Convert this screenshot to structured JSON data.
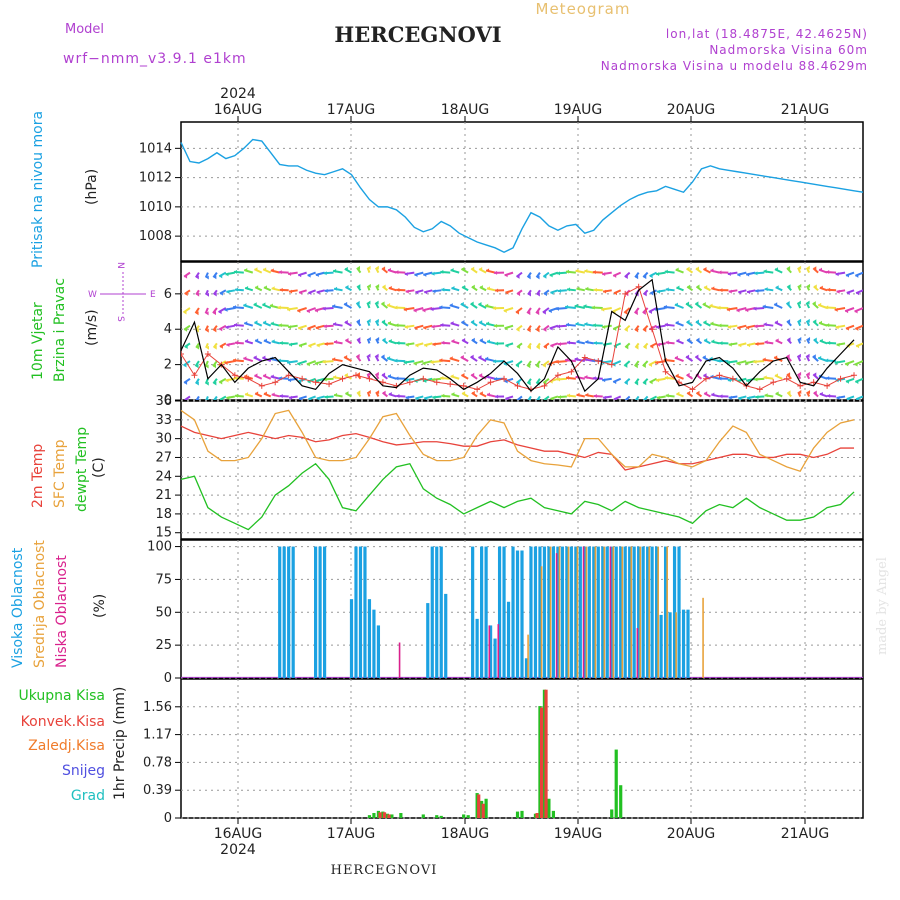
{
  "header": {
    "model_label": "Model",
    "model_name": "wrf−nmm_v3.9.1  e1km",
    "title": "HERCEGNOVI",
    "meteogram": "Meteogram",
    "lonlat": "lon,lat (18.4875E, 42.4625N)",
    "altitude": "Nadmorska Visina 60m",
    "model_altitude": "Nadmorska Visina u modelu 88.4629m"
  },
  "footer_title": "HERCEGNOVI",
  "watermark": "made by Angel",
  "year": "2024",
  "dates": [
    "16AUG",
    "17AUG",
    "18AUG",
    "19AUG",
    "20AUG",
    "21AUG"
  ],
  "colors": {
    "pressure": "#1ba1e2",
    "temp2m": "#e8433b",
    "sfc": "#e8a23b",
    "dewpt": "#22c022",
    "high_cloud": "#1ba1e2",
    "mid_cloud": "#e8a23b",
    "low_cloud": "#d9208c",
    "precip_total": "#22c022",
    "precip_conv": "#e8433b",
    "precip_grid": "#f07b2a",
    "snow": "#5050e0",
    "graupel": "#20c0c0",
    "purple": "#b040d0"
  },
  "panels": {
    "pressure": {
      "label": "Pritisak na nivou mora",
      "unit": "(hPa)"
    },
    "wind": {
      "label1": "10m Vjetar",
      "label2": "Brzina i Pravac",
      "unit": "(m/s)",
      "compass_n": "N",
      "compass_w": "W",
      "compass_e": "E",
      "compass_s": "S"
    },
    "temp": {
      "label_2m": "2m Temp",
      "label_sfc": "SFC Temp",
      "label_dew": "dewpt Temp",
      "unit": "(C)"
    },
    "cloud": {
      "label_high": "Visoka Oblacnost",
      "label_mid": "Srednja Oblacnost",
      "label_low": "Niska Oblacnost",
      "unit": "(%)"
    },
    "precip": {
      "unit": "1hr Precip (mm)",
      "legend": [
        "Ukupna Kisa",
        "Konvek.Kisa",
        "Zaledj.Kisa",
        "Snijeg",
        "Grad"
      ]
    }
  },
  "chart_data": [
    {
      "type": "line",
      "title": "Pritisak na nivou mora",
      "ylabel": "(hPa)",
      "ylim": [
        1006.3,
        1015.8
      ],
      "yticks": [
        "1008",
        "1010",
        "1012",
        "1014"
      ],
      "x_hours": [
        0,
        2,
        4,
        6,
        8,
        10,
        12,
        14,
        16,
        18,
        20,
        22,
        24,
        26,
        28,
        30,
        32,
        34,
        36,
        38,
        40,
        42,
        44,
        46,
        48,
        50,
        52,
        54,
        56,
        58,
        60,
        62,
        64,
        66,
        68,
        70,
        72,
        74,
        76,
        78,
        80,
        82,
        84,
        86,
        88,
        90,
        92,
        94,
        96,
        98,
        100,
        102,
        104,
        106,
        108,
        110,
        112,
        114,
        116,
        118,
        120,
        122,
        124,
        126,
        128,
        130,
        132,
        134,
        136,
        138,
        140,
        142,
        144,
        146,
        148,
        150,
        152
      ],
      "series": [
        {
          "values": [
            1014.4,
            1013.1,
            1013.0,
            1013.3,
            1013.7,
            1013.3,
            1013.5,
            1014.0,
            1014.6,
            1014.5,
            1013.7,
            1012.9,
            1012.8,
            1012.8,
            1012.5,
            1012.3,
            1012.2,
            1012.4,
            1012.6,
            1012.2,
            1011.3,
            1010.5,
            1010.0,
            1010.0,
            1009.8,
            1009.3,
            1008.6,
            1008.3,
            1008.5,
            1009.0,
            1008.7,
            1008.2,
            1007.9,
            1007.6,
            1007.4,
            1007.2,
            1006.9,
            1007.2,
            1008.5,
            1009.6,
            1009.3,
            1008.7,
            1008.4,
            1008.7,
            1008.8,
            1008.2,
            1008.4,
            1009.1,
            1009.6,
            1010.1,
            1010.5,
            1010.8,
            1011.0,
            1011.1,
            1011.4,
            1011.2,
            1011.0,
            1011.7,
            1012.6,
            1012.8,
            1012.6,
            1012.5,
            1012.4,
            1012.3,
            1012.2,
            1012.1,
            1012.0,
            1011.9,
            1011.8,
            1011.7,
            1011.6,
            1011.5,
            1011.4,
            1011.3,
            1011.2,
            1011.1,
            1011.0
          ]
        }
      ]
    },
    {
      "type": "line",
      "title": "10m Vjetar Brzina i Pravac",
      "ylabel": "(m/s)",
      "ylim": [
        0,
        7.8
      ],
      "yticks": [
        "0",
        "2",
        "4",
        "6"
      ],
      "x_hours": [
        0,
        3,
        6,
        9,
        12,
        15,
        18,
        21,
        24,
        27,
        30,
        33,
        36,
        39,
        42,
        45,
        48,
        51,
        54,
        57,
        60,
        63,
        66,
        69,
        72,
        75,
        78,
        81,
        84,
        87,
        90,
        93,
        96,
        99,
        102,
        105,
        108,
        111,
        114,
        117,
        120,
        123,
        126,
        129,
        132,
        135,
        138,
        141,
        144,
        147,
        150
      ],
      "series": [
        {
          "values": [
            2.8,
            4.4,
            1.2,
            2.0,
            1.0,
            1.8,
            2.2,
            2.4,
            1.6,
            0.8,
            0.6,
            1.5,
            2.0,
            1.8,
            1.6,
            0.8,
            0.7,
            1.4,
            1.8,
            1.7,
            1.2,
            0.6,
            1.0,
            1.5,
            2.2,
            1.5,
            0.5,
            1.2,
            3.0,
            2.2,
            0.5,
            1.2,
            5.0,
            4.5,
            6.2,
            6.8,
            2.2,
            0.8,
            1.0,
            2.2,
            2.4,
            1.8,
            0.8,
            1.6,
            2.2,
            2.4,
            1.0,
            0.8,
            1.8,
            2.6,
            3.4
          ]
        },
        {
          "values": [
            2.6,
            1.4,
            2.6,
            2.0,
            1.4,
            1.2,
            0.8,
            1.0,
            1.4,
            1.2,
            1.0,
            0.9,
            1.2,
            1.4,
            1.2,
            1.0,
            0.8,
            1.0,
            1.2,
            1.0,
            0.9,
            0.8,
            0.6,
            1.0,
            1.2,
            0.8,
            0.6,
            0.8,
            1.4,
            1.6,
            2.4,
            2.2,
            2.0,
            6.0,
            6.4,
            4.0,
            1.6,
            1.0,
            0.6,
            1.2,
            1.4,
            1.2,
            0.8,
            0.6,
            1.0,
            1.2,
            0.8,
            1.0,
            0.8,
            1.2,
            1.4
          ]
        }
      ]
    },
    {
      "type": "line",
      "title": "2m Temp / SFC Temp / dewpt Temp",
      "ylabel": "(C)",
      "ylim": [
        14,
        36
      ],
      "yticks": [
        "15",
        "18",
        "21",
        "24",
        "27",
        "30",
        "33",
        "36"
      ],
      "x_hours": [
        0,
        3,
        6,
        9,
        12,
        15,
        18,
        21,
        24,
        27,
        30,
        33,
        36,
        39,
        42,
        45,
        48,
        51,
        54,
        57,
        60,
        63,
        66,
        69,
        72,
        75,
        78,
        81,
        84,
        87,
        90,
        93,
        96,
        99,
        102,
        105,
        108,
        111,
        114,
        117,
        120,
        123,
        126,
        129,
        132,
        135,
        138,
        141,
        144,
        147,
        150
      ],
      "series": [
        {
          "name": "2m Temp",
          "values": [
            32.0,
            31.0,
            30.5,
            30.0,
            30.5,
            31.0,
            30.5,
            30.0,
            30.5,
            30.2,
            29.5,
            29.8,
            30.5,
            30.8,
            30.2,
            29.5,
            29.0,
            29.2,
            29.5,
            29.5,
            29.2,
            28.8,
            28.8,
            29.5,
            29.8,
            29.0,
            28.5,
            28.0,
            28.0,
            27.5,
            27.0,
            27.8,
            27.5,
            25.0,
            25.5,
            26.0,
            26.5,
            26.0,
            26.0,
            26.5,
            27.0,
            27.5,
            27.5,
            27.0,
            27.0,
            27.5,
            27.5,
            27.0,
            27.5,
            28.5,
            28.5
          ]
        },
        {
          "name": "SFC Temp",
          "values": [
            34.5,
            33.0,
            28.0,
            26.5,
            26.5,
            27.0,
            30.0,
            34.0,
            34.5,
            31.0,
            27.0,
            26.5,
            26.5,
            27.0,
            30.0,
            33.5,
            34.0,
            30.5,
            27.5,
            26.5,
            26.5,
            27.0,
            30.5,
            33.0,
            32.5,
            28.0,
            26.5,
            26.0,
            25.8,
            25.5,
            30.0,
            30.0,
            27.5,
            25.5,
            25.5,
            27.5,
            27.0,
            26.0,
            25.5,
            26.5,
            29.5,
            32.0,
            31.0,
            27.5,
            26.5,
            25.5,
            24.8,
            28.5,
            31.0,
            32.5,
            33.0
          ]
        },
        {
          "name": "dewpt Temp",
          "values": [
            23.5,
            24.0,
            19.0,
            17.5,
            16.5,
            15.5,
            17.5,
            21.0,
            22.5,
            24.5,
            26.0,
            23.5,
            19.0,
            18.5,
            21.0,
            23.5,
            25.5,
            26.0,
            22.0,
            20.5,
            19.5,
            18.0,
            19.0,
            20.0,
            19.0,
            20.0,
            20.5,
            19.0,
            18.5,
            18.0,
            20.0,
            19.5,
            18.5,
            20.0,
            19.0,
            18.5,
            18.0,
            17.5,
            16.5,
            18.5,
            19.5,
            19.0,
            20.5,
            19.0,
            18.0,
            17.0,
            17.0,
            17.5,
            19.0,
            19.5,
            21.5
          ]
        }
      ]
    },
    {
      "type": "bar",
      "title": "Visoka / Srednja / Niska Oblacnost",
      "ylabel": "(%)",
      "ylim": [
        0,
        105
      ],
      "yticks": [
        "0",
        "25",
        "50",
        "75",
        "100"
      ],
      "series": [
        {
          "name": "Visoka Oblacnost",
          "x_hours": [
            22,
            23,
            24,
            25,
            30,
            31,
            32,
            38,
            39,
            40,
            41,
            42,
            43,
            44,
            55,
            56,
            57,
            58,
            59,
            65,
            66,
            67,
            68,
            69,
            70,
            71,
            72,
            73,
            74,
            75,
            76,
            77,
            78,
            79,
            80,
            81,
            82,
            83,
            84,
            85,
            86,
            87,
            88,
            89,
            90,
            91,
            92,
            93,
            94,
            95,
            96,
            97,
            98,
            99,
            100,
            101,
            102,
            103,
            104,
            105,
            106,
            107,
            108,
            109,
            110,
            111,
            112,
            113
          ],
          "values": [
            100,
            100,
            100,
            100,
            100,
            100,
            100,
            60,
            100,
            100,
            100,
            60,
            52,
            40,
            57,
            100,
            100,
            100,
            64,
            100,
            45,
            100,
            100,
            40,
            30,
            100,
            100,
            58,
            100,
            97,
            97,
            15,
            100,
            100,
            100,
            100,
            100,
            100,
            100,
            100,
            100,
            100,
            100,
            100,
            100,
            100,
            100,
            100,
            100,
            100,
            100,
            100,
            100,
            100,
            100,
            100,
            100,
            100,
            100,
            100,
            100,
            48,
            100,
            50,
            100,
            100,
            52,
            52
          ]
        },
        {
          "name": "Srednja Oblacnost",
          "x_hours": [
            77,
            80,
            82,
            84,
            86,
            88,
            90,
            92,
            94,
            96,
            98,
            100,
            102,
            104,
            106,
            108,
            110,
            116
          ],
          "values": [
            33,
            85,
            100,
            100,
            100,
            100,
            100,
            100,
            100,
            100,
            100,
            100,
            100,
            100,
            100,
            100,
            50,
            61
          ]
        },
        {
          "name": "Niska Oblacnost",
          "x_hours": [
            48,
            68,
            70,
            83,
            89,
            95,
            101
          ],
          "values": [
            27,
            40,
            41,
            95,
            100,
            100,
            38
          ]
        }
      ]
    },
    {
      "type": "bar",
      "title": "1hr Precip",
      "ylabel": "1hr Precip (mm)",
      "ylim": [
        0,
        1.95
      ],
      "yticks": [
        "0",
        "0.39",
        "0.78",
        "1.17",
        "1.56"
      ],
      "series": [
        {
          "name": "Ukupna Kisa",
          "x_hours": [
            42,
            43,
            44,
            45,
            46,
            47,
            49,
            54,
            57,
            58,
            63,
            64,
            66,
            67,
            68,
            75,
            76,
            79,
            80,
            81,
            82,
            83,
            96,
            97,
            98
          ],
          "values": [
            0.04,
            0.07,
            0.1,
            0.09,
            0.06,
            0.05,
            0.07,
            0.05,
            0.04,
            0.03,
            0.05,
            0.04,
            0.35,
            0.24,
            0.27,
            0.09,
            0.1,
            0.06,
            1.57,
            1.8,
            0.27,
            0.1,
            0.12,
            0.96,
            0.46
          ]
        },
        {
          "name": "Konvek.Kisa",
          "x_hours": [
            44,
            45,
            46,
            66,
            67,
            79,
            80,
            81
          ],
          "values": [
            0.08,
            0.08,
            0.05,
            0.33,
            0.2,
            0.07,
            1.55,
            1.8
          ]
        }
      ]
    }
  ]
}
